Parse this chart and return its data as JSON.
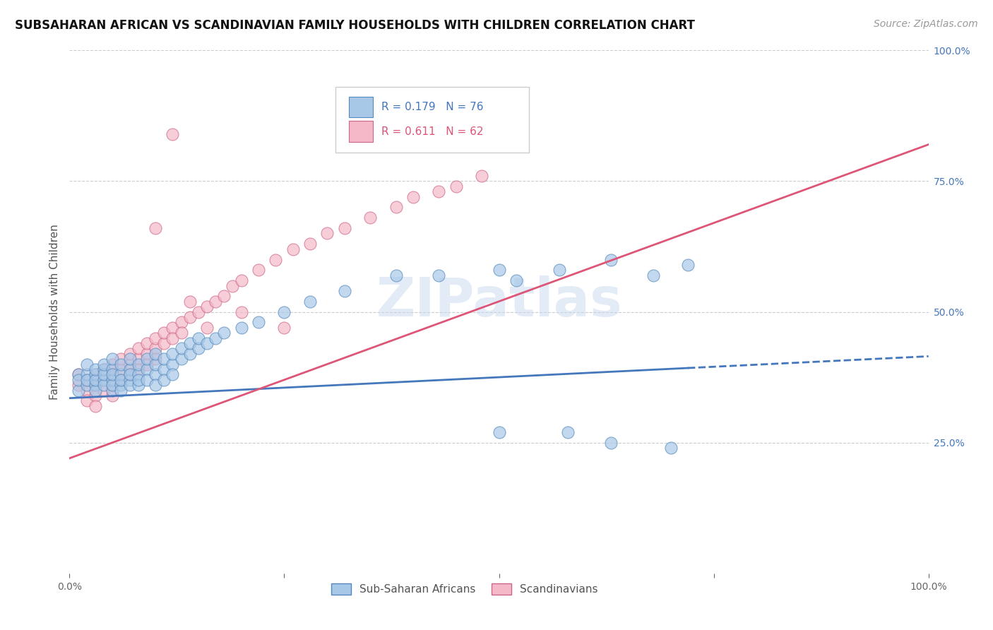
{
  "title": "SUBSAHARAN AFRICAN VS SCANDINAVIAN FAMILY HOUSEHOLDS WITH CHILDREN CORRELATION CHART",
  "source": "Source: ZipAtlas.com",
  "ylabel": "Family Households with Children",
  "blue_R": 0.179,
  "blue_N": 76,
  "pink_R": 0.611,
  "pink_N": 62,
  "blue_color": "#a8c8e8",
  "pink_color": "#f4b8c8",
  "blue_edge_color": "#5588bb",
  "pink_edge_color": "#cc6688",
  "blue_line_color": "#4477bb",
  "pink_line_color": "#dd5577",
  "xlim": [
    0,
    1
  ],
  "ylim": [
    0,
    1
  ],
  "xticks": [
    0.0,
    0.25,
    0.5,
    0.75,
    1.0
  ],
  "xticklabels": [
    "0.0%",
    "",
    "",
    "",
    "100.0%"
  ],
  "yticks_right": [
    0.25,
    0.5,
    0.75,
    1.0
  ],
  "yticklabels_right": [
    "25.0%",
    "50.0%",
    "75.0%",
    "100.0%"
  ],
  "blue_line_y_start": 0.335,
  "blue_line_y_end": 0.415,
  "blue_line_solid_end": 0.72,
  "pink_line_y_start": 0.22,
  "pink_line_y_end": 0.82,
  "watermark": "ZIPatlas",
  "legend_blue_label": "Sub-Saharan Africans",
  "legend_pink_label": "Scandinavians",
  "background_color": "#ffffff",
  "grid_color": "#cccccc",
  "title_fontsize": 12,
  "axis_label_fontsize": 11,
  "tick_fontsize": 10,
  "source_fontsize": 10,
  "blue_scatter_x": [
    0.01,
    0.01,
    0.01,
    0.02,
    0.02,
    0.02,
    0.02,
    0.03,
    0.03,
    0.03,
    0.03,
    0.03,
    0.04,
    0.04,
    0.04,
    0.04,
    0.04,
    0.05,
    0.05,
    0.05,
    0.05,
    0.05,
    0.05,
    0.06,
    0.06,
    0.06,
    0.06,
    0.06,
    0.07,
    0.07,
    0.07,
    0.07,
    0.07,
    0.08,
    0.08,
    0.08,
    0.08,
    0.09,
    0.09,
    0.09,
    0.1,
    0.1,
    0.1,
    0.1,
    0.11,
    0.11,
    0.11,
    0.12,
    0.12,
    0.12,
    0.13,
    0.13,
    0.14,
    0.14,
    0.15,
    0.15,
    0.16,
    0.17,
    0.18,
    0.2,
    0.22,
    0.25,
    0.28,
    0.32,
    0.38,
    0.43,
    0.5,
    0.52,
    0.57,
    0.63,
    0.68,
    0.72,
    0.5,
    0.58,
    0.63,
    0.7
  ],
  "blue_scatter_y": [
    0.38,
    0.35,
    0.37,
    0.36,
    0.38,
    0.4,
    0.37,
    0.36,
    0.38,
    0.35,
    0.37,
    0.39,
    0.37,
    0.39,
    0.36,
    0.38,
    0.4,
    0.35,
    0.37,
    0.39,
    0.41,
    0.36,
    0.38,
    0.36,
    0.38,
    0.4,
    0.35,
    0.37,
    0.37,
    0.39,
    0.41,
    0.36,
    0.38,
    0.38,
    0.4,
    0.36,
    0.37,
    0.39,
    0.41,
    0.37,
    0.38,
    0.4,
    0.36,
    0.42,
    0.39,
    0.41,
    0.37,
    0.4,
    0.42,
    0.38,
    0.41,
    0.43,
    0.42,
    0.44,
    0.43,
    0.45,
    0.44,
    0.45,
    0.46,
    0.47,
    0.48,
    0.5,
    0.52,
    0.54,
    0.57,
    0.57,
    0.58,
    0.56,
    0.58,
    0.6,
    0.57,
    0.59,
    0.27,
    0.27,
    0.25,
    0.24
  ],
  "pink_scatter_x": [
    0.01,
    0.01,
    0.02,
    0.02,
    0.02,
    0.03,
    0.03,
    0.03,
    0.03,
    0.04,
    0.04,
    0.04,
    0.05,
    0.05,
    0.05,
    0.05,
    0.06,
    0.06,
    0.06,
    0.07,
    0.07,
    0.07,
    0.08,
    0.08,
    0.08,
    0.09,
    0.09,
    0.09,
    0.1,
    0.1,
    0.1,
    0.11,
    0.11,
    0.12,
    0.12,
    0.13,
    0.13,
    0.14,
    0.15,
    0.16,
    0.17,
    0.18,
    0.19,
    0.2,
    0.22,
    0.24,
    0.26,
    0.28,
    0.3,
    0.32,
    0.35,
    0.38,
    0.4,
    0.43,
    0.45,
    0.48,
    0.1,
    0.12,
    0.14,
    0.16,
    0.2,
    0.25
  ],
  "pink_scatter_y": [
    0.36,
    0.38,
    0.35,
    0.37,
    0.33,
    0.36,
    0.38,
    0.34,
    0.32,
    0.37,
    0.39,
    0.35,
    0.38,
    0.36,
    0.4,
    0.34,
    0.39,
    0.37,
    0.41,
    0.38,
    0.4,
    0.42,
    0.41,
    0.39,
    0.43,
    0.42,
    0.44,
    0.4,
    0.43,
    0.45,
    0.41,
    0.44,
    0.46,
    0.47,
    0.45,
    0.48,
    0.46,
    0.49,
    0.5,
    0.51,
    0.52,
    0.53,
    0.55,
    0.56,
    0.58,
    0.6,
    0.62,
    0.63,
    0.65,
    0.66,
    0.68,
    0.7,
    0.72,
    0.73,
    0.74,
    0.76,
    0.66,
    0.84,
    0.52,
    0.47,
    0.5,
    0.47
  ]
}
